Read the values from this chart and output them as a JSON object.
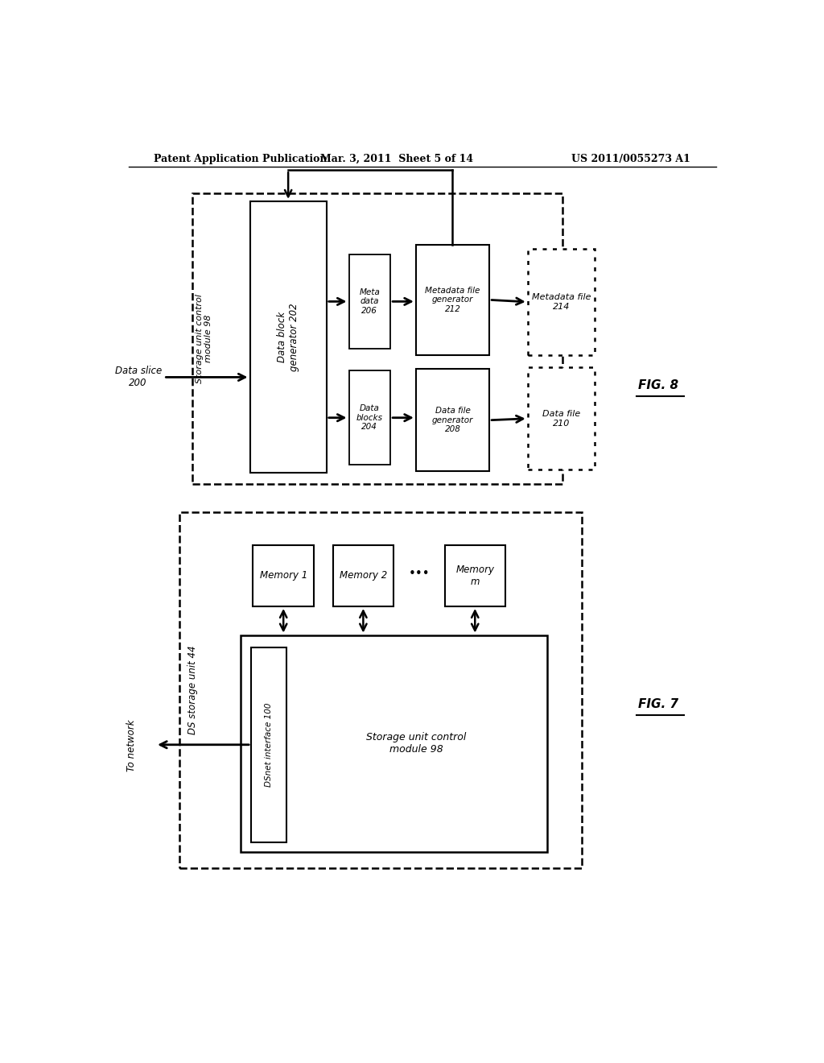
{
  "header_left": "Patent Application Publication",
  "header_mid": "Mar. 3, 2011  Sheet 5 of 14",
  "header_right": "US 2011/0055273 A1",
  "bg_color": "#ffffff"
}
